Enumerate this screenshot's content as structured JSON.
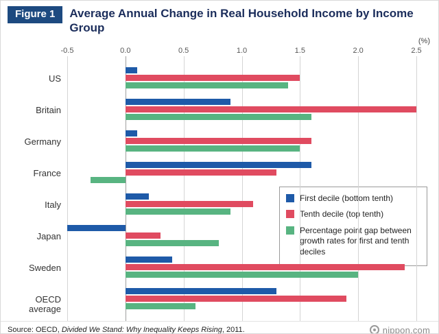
{
  "figure_label": "Figure 1",
  "title": "Average Annual Change in Real Household Income by Income Group",
  "axis_unit": "(%)",
  "chart_data": {
    "type": "bar",
    "orientation": "horizontal",
    "title": "Average Annual Change in Real Household Income by Income Group",
    "xlabel": "(%)",
    "ylabel": "",
    "xlim": [
      -0.5,
      2.5
    ],
    "grid": true,
    "legend_position": "middle-right",
    "tick_labels": [
      "-0.5",
      "0.0",
      "0.5",
      "1.0",
      "1.5",
      "2.0",
      "2.5"
    ],
    "tick_values": [
      -0.5,
      0.0,
      0.5,
      1.0,
      1.5,
      2.0,
      2.5
    ],
    "categories": [
      "US",
      "Britain",
      "Germany",
      "France",
      "Italy",
      "Japan",
      "Sweden",
      "OECD average"
    ],
    "series": [
      {
        "name": "First decile (bottom tenth)",
        "color": "#1e5aa8",
        "values": [
          0.1,
          0.9,
          0.1,
          1.6,
          0.2,
          -0.5,
          0.4,
          1.3
        ]
      },
      {
        "name": "Tenth decile (top tenth)",
        "color": "#e04b60",
        "values": [
          1.5,
          2.5,
          1.6,
          1.3,
          1.1,
          0.3,
          2.4,
          1.9
        ]
      },
      {
        "name": "Percentage point gap between growth rates for first and tenth deciles",
        "color": "#58b481",
        "values": [
          1.4,
          1.6,
          1.5,
          -0.3,
          0.9,
          0.8,
          2.0,
          0.6
        ]
      }
    ],
    "colors": {
      "grid": "#d4d4d4",
      "zero_line": "#9e9e9e"
    }
  },
  "footer": {
    "source_prefix": "Source: OECD, ",
    "source_title": "Divided We Stand: Why Inequality Keeps Rising",
    "source_suffix": ", 2011.",
    "brand": "nippon.com"
  }
}
